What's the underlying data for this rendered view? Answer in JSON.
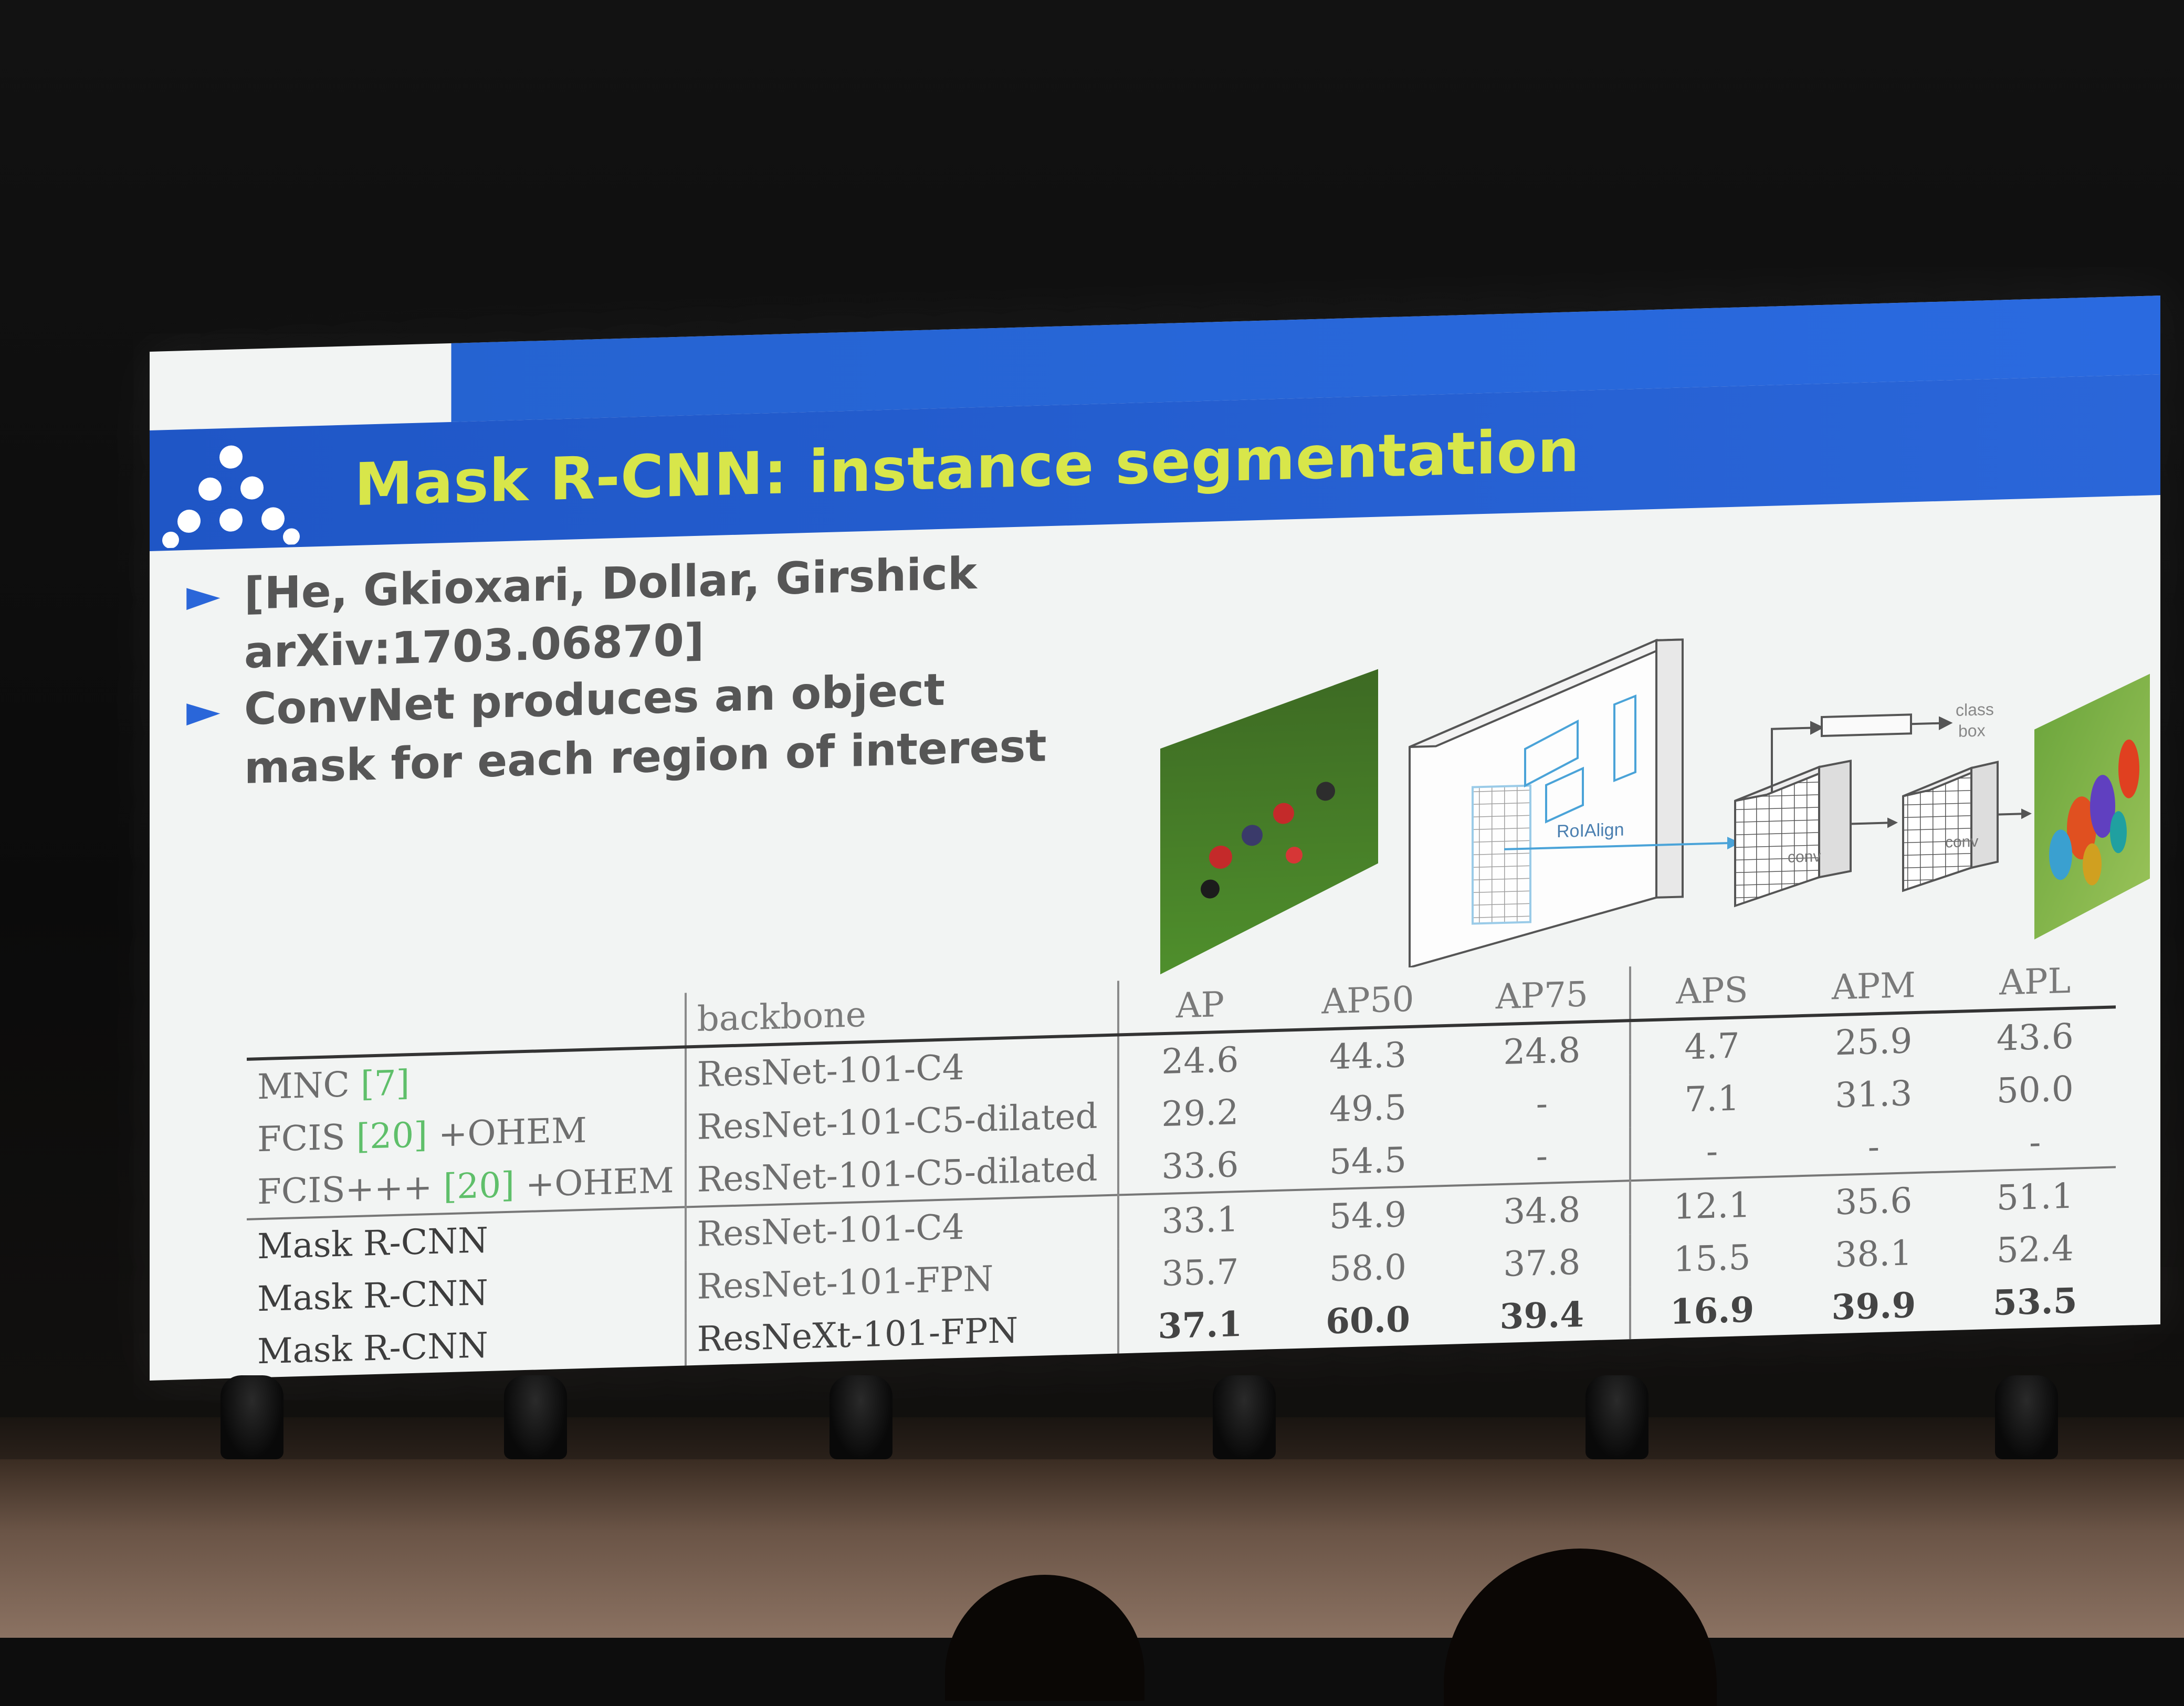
{
  "slide": {
    "title": "Mask R-CNN: instance segmentation",
    "bullets": [
      {
        "text": "[He, Gkioxari, Dollar, Girshick arXiv:1703.06870]"
      },
      {
        "text": "ConvNet produces an object mask for each region of interest"
      }
    ]
  },
  "diagram": {
    "roialign_label": "RoIAlign",
    "conv_label_1": "conv",
    "conv_label_2": "conv",
    "class_label": "class",
    "box_label": "box"
  },
  "table": {
    "headers": [
      "",
      "backbone",
      "AP",
      "AP50",
      "AP75",
      "APS",
      "APM",
      "APL"
    ],
    "rows": [
      {
        "method": "MNC",
        "cite": "[7]",
        "suffix": "",
        "backbone": "ResNet-101-C4",
        "ap": "24.6",
        "ap50": "44.3",
        "ap75": "24.8",
        "aps": "4.7",
        "apm": "25.9",
        "apl": "43.6"
      },
      {
        "method": "FCIS",
        "cite": "[20]",
        "suffix": "+OHEM",
        "backbone": "ResNet-101-C5-dilated",
        "ap": "29.2",
        "ap50": "49.5",
        "ap75": "-",
        "aps": "7.1",
        "apm": "31.3",
        "apl": "50.0"
      },
      {
        "method": "FCIS+++",
        "cite": "[20]",
        "suffix": "+OHEM",
        "backbone": "ResNet-101-C5-dilated",
        "ap": "33.6",
        "ap50": "54.5",
        "ap75": "-",
        "aps": "-",
        "apm": "-",
        "apl": "-"
      },
      {
        "method": "Mask R-CNN",
        "cite": "",
        "suffix": "",
        "backbone": "ResNet-101-C4",
        "ap": "33.1",
        "ap50": "54.9",
        "ap75": "34.8",
        "aps": "12.1",
        "apm": "35.6",
        "apl": "51.1"
      },
      {
        "method": "Mask R-CNN",
        "cite": "",
        "suffix": "",
        "backbone": "ResNet-101-FPN",
        "ap": "35.7",
        "ap50": "58.0",
        "ap75": "37.8",
        "aps": "15.5",
        "apm": "38.1",
        "apl": "52.4"
      },
      {
        "method": "Mask R-CNN",
        "cite": "",
        "suffix": "",
        "backbone": "ResNeXt-101-FPN",
        "ap": "37.1",
        "ap50": "60.0",
        "ap75": "39.4",
        "aps": "16.9",
        "apm": "39.9",
        "apl": "53.5"
      }
    ]
  },
  "colors": {
    "title_bar": "#2a66d9",
    "title_text": "#d8e64a",
    "bullet_arrow": "#2a66d9",
    "citation_green": "#5fbf6a"
  }
}
